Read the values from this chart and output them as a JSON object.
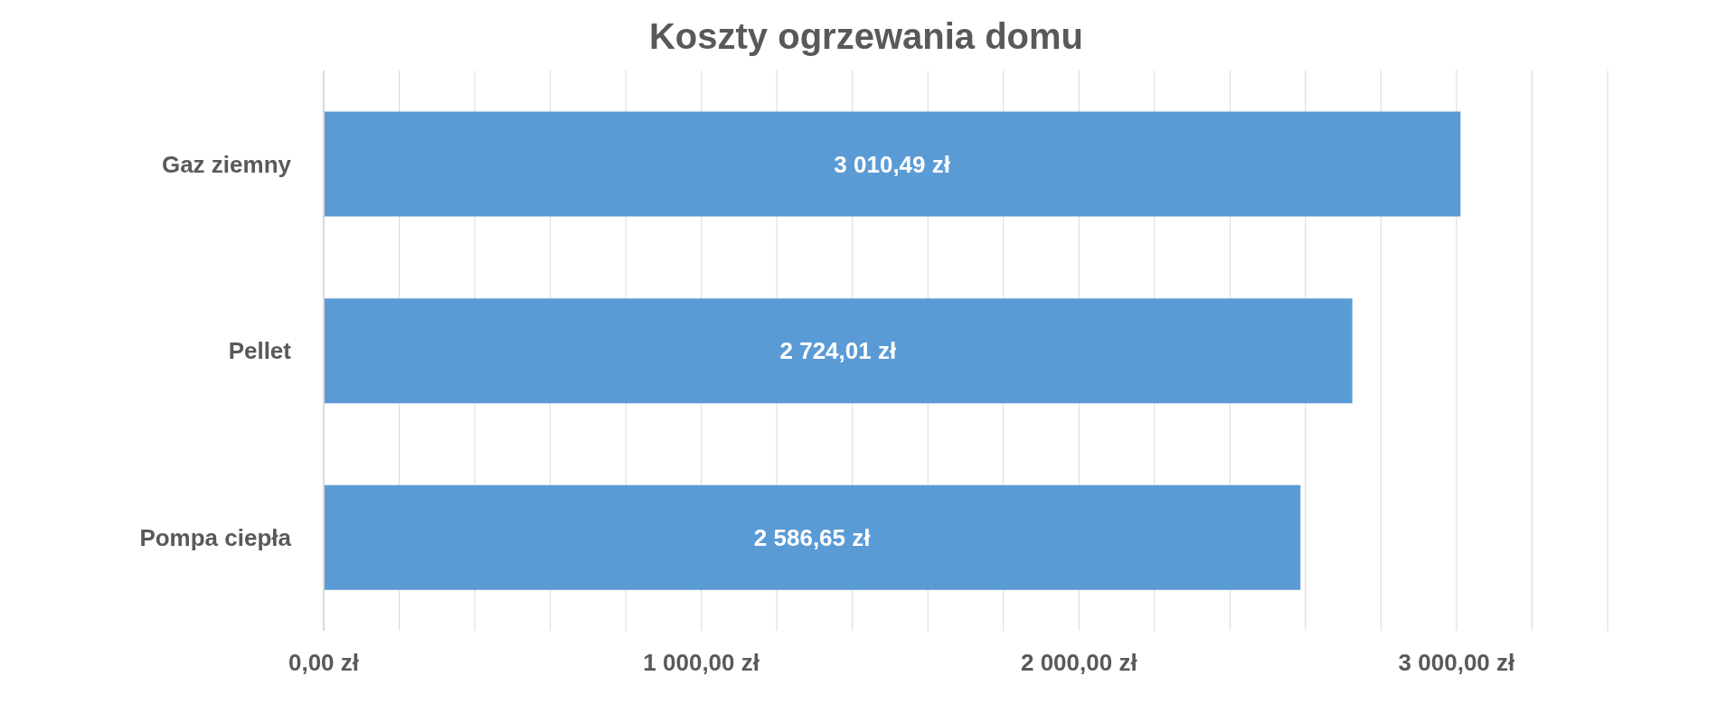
{
  "chart_data": {
    "type": "bar",
    "orientation": "horizontal",
    "title": "Koszty ogrzewania domu",
    "categories": [
      "Gaz ziemny",
      "Pellet",
      "Pompa ciepła"
    ],
    "values": [
      3010.49,
      2724.01,
      2586.65
    ],
    "value_labels": [
      "3 010,49 zł",
      "2 724,01 zł",
      "2 586,65 zł"
    ],
    "color": "#5b9bd5",
    "xlim": [
      0,
      3400
    ],
    "xticks": [
      {
        "value": 0,
        "label": "0,00 zł"
      },
      {
        "value": 200,
        "label": null
      },
      {
        "value": 400,
        "label": null
      },
      {
        "value": 600,
        "label": null
      },
      {
        "value": 800,
        "label": null
      },
      {
        "value": 1000,
        "label": "1 000,00 zł"
      },
      {
        "value": 1200,
        "label": null
      },
      {
        "value": 1400,
        "label": null
      },
      {
        "value": 1600,
        "label": null
      },
      {
        "value": 1800,
        "label": null
      },
      {
        "value": 2000,
        "label": "2 000,00 zł"
      },
      {
        "value": 2200,
        "label": null
      },
      {
        "value": 2400,
        "label": null
      },
      {
        "value": 2600,
        "label": null
      },
      {
        "value": 2800,
        "label": null
      },
      {
        "value": 3000,
        "label": "3 000,00 zł"
      },
      {
        "value": 3200,
        "label": null
      },
      {
        "value": 3400,
        "label": null
      }
    ],
    "grid": "x"
  }
}
